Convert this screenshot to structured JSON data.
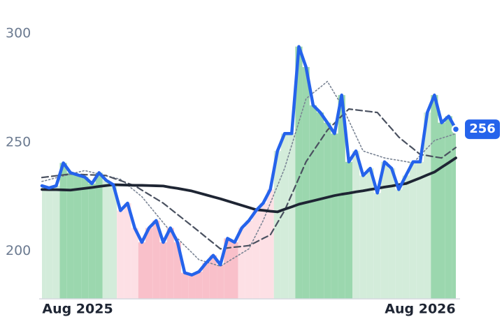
{
  "chart_data": {
    "type": "line",
    "x": [
      0,
      1,
      2,
      3,
      4,
      5,
      6,
      7,
      8,
      9,
      10,
      11,
      12,
      13,
      14,
      15,
      16,
      17,
      18,
      19,
      20,
      21,
      22,
      23,
      24,
      25,
      26,
      27,
      28,
      29,
      30,
      31,
      32,
      33,
      34,
      35,
      36,
      37,
      38,
      39,
      40,
      41,
      42,
      43,
      44,
      45,
      46,
      47,
      48,
      49,
      50,
      51,
      52,
      53,
      54,
      55,
      56,
      57,
      58
    ],
    "xlim": [
      0,
      58
    ],
    "xticks": [
      {
        "value": 5,
        "label": "Aug 2025"
      },
      {
        "value": 53,
        "label": "Aug 2026"
      }
    ],
    "ylim": [
      178,
      309
    ],
    "yticks": [
      200,
      250,
      300
    ],
    "grid": false,
    "series": [
      {
        "color": "#2563eb",
        "values": [
          230,
          229,
          230,
          240.5,
          236,
          235,
          234,
          231,
          236,
          232.5,
          230.5,
          218.6,
          222,
          210.6,
          204,
          210.6,
          214,
          204,
          210.6,
          204,
          190,
          189,
          190.5,
          194.5,
          198,
          193.7,
          205.8,
          204,
          210.6,
          214,
          218.6,
          222,
          228.3,
          246,
          254,
          254,
          294,
          284.6,
          267,
          263.7,
          259,
          254,
          271.7,
          241,
          246,
          234.7,
          238,
          226.7,
          241,
          238,
          228.3,
          234.7,
          241,
          241,
          263.7,
          271.7,
          259,
          262,
          256
        ]
      },
      {
        "color": "#7a8494",
        "values": [
          232,
          232.8,
          233.7,
          234.5,
          235.3,
          236.2,
          237,
          236.2,
          235.4,
          234.6,
          233.8,
          233,
          230.3,
          227.7,
          225,
          221,
          217,
          213,
          209,
          205.8,
          202.5,
          199.3,
          196,
          195,
          194,
          193,
          195,
          197,
          199,
          201,
          207.5,
          214,
          222,
          230,
          238,
          248.7,
          259.3,
          270,
          272.7,
          275.3,
          278,
          272.5,
          267,
          260,
          253,
          246,
          244.9,
          243.9,
          242.8,
          242.2,
          241.7,
          241.1,
          240.5,
          243.9,
          247.4,
          250.8,
          251.9,
          252.9,
          254
        ]
      },
      {
        "color": "#4a5160",
        "values": [
          233.8,
          234.2,
          234.6,
          235,
          235.4,
          235.3,
          235.1,
          235,
          234.9,
          234.7,
          233.5,
          232.4,
          231.2,
          230,
          228,
          226,
          224,
          222,
          219.4,
          216.8,
          214.2,
          211.6,
          209,
          206.3,
          203.7,
          201,
          201.4,
          201.8,
          202.1,
          202.5,
          204.1,
          205.8,
          207.4,
          213,
          218.6,
          226,
          233.5,
          241,
          245.9,
          250.7,
          255.6,
          258.8,
          262.1,
          265.3,
          264.9,
          264.5,
          264.1,
          263.7,
          259.9,
          256.2,
          252.4,
          249.7,
          247.1,
          244.4,
          243.9,
          243.3,
          242.8,
          245.2,
          247.6
        ]
      },
      {
        "color": "#1e2533",
        "values": [
          228.3,
          228.2,
          228.2,
          228.1,
          228,
          228.4,
          228.8,
          229.2,
          229.7,
          230.1,
          230.5,
          230.4,
          230.3,
          230.2,
          230.2,
          230.1,
          230,
          229.9,
          229.3,
          228.8,
          228.2,
          227.6,
          226.7,
          225.8,
          224.9,
          224,
          223,
          222,
          221,
          220,
          219,
          218.7,
          218.3,
          218,
          219.2,
          220.3,
          221.5,
          222.3,
          223.1,
          223.9,
          224.7,
          225.5,
          226.1,
          226.6,
          227.2,
          227.7,
          228.3,
          228.8,
          229.4,
          229.9,
          230.5,
          231,
          232.3,
          233.6,
          235,
          236.3,
          238.5,
          240.6,
          242.8
        ]
      }
    ],
    "fill_colors": [
      "#d3ecda",
      "#d3ecda",
      "#d3ecda",
      "#9bd7ae",
      "#9bd7ae",
      "#9bd7ae",
      "#9bd7ae",
      "#9bd7ae",
      "#9bd7ae",
      "#d3ecda",
      "#d3ecda",
      "#fde0e5",
      "#fde0e5",
      "#fde0e5",
      "#f9c0ca",
      "#f9c0ca",
      "#f9c0ca",
      "#f9c0ca",
      "#f9c0ca",
      "#f9c0ca",
      "#f9c0ca",
      "#f9c0ca",
      "#f9c0ca",
      "#f9c0ca",
      "#f9c0ca",
      "#f9c0ca",
      "#f9c0ca",
      "#f9c0ca",
      "#fde0e5",
      "#fde0e5",
      "#fde0e5",
      "#fde0e5",
      "#fde0e5",
      "#d3ecda",
      "#d3ecda",
      "#d3ecda",
      "#9bd7ae",
      "#9bd7ae",
      "#9bd7ae",
      "#9bd7ae",
      "#9bd7ae",
      "#9bd7ae",
      "#9bd7ae",
      "#9bd7ae",
      "#d3ecda",
      "#d3ecda",
      "#d3ecda",
      "#d3ecda",
      "#d3ecda",
      "#d3ecda",
      "#d3ecda",
      "#d3ecda",
      "#d3ecda",
      "#d3ecda",
      "#d3ecda",
      "#9bd7ae",
      "#9bd7ae",
      "#9bd7ae",
      "#9bd7ae"
    ]
  }
}
